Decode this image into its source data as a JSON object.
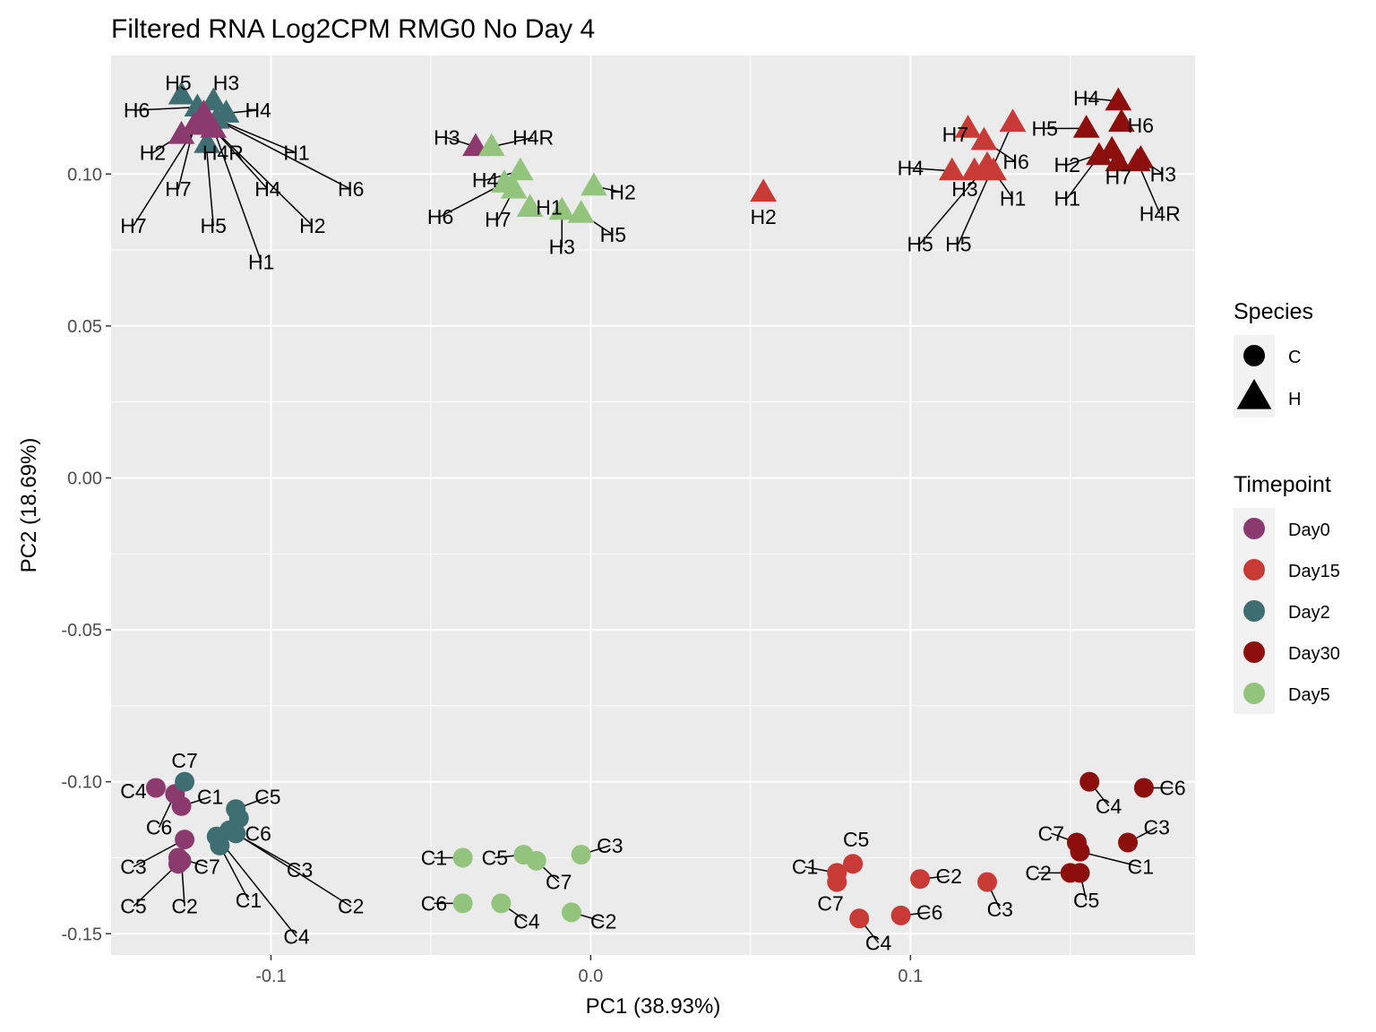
{
  "chart_data": {
    "type": "scatter",
    "title": "Filtered RNA Log2CPM RMG0 No Day 4",
    "xlabel": "PC1 (38.93%)",
    "ylabel": "PC2 (18.69%)",
    "xlim": [
      -0.15,
      0.189
    ],
    "ylim": [
      -0.157,
      0.139
    ],
    "xticks": [
      -0.1,
      0.0,
      0.1
    ],
    "xtick_labels": [
      "-0.1",
      "0.0",
      "0.1"
    ],
    "yticks": [
      -0.15,
      -0.1,
      -0.05,
      0.0,
      0.05,
      0.1
    ],
    "ytick_labels": [
      "-0.15",
      "-0.10",
      "-0.05",
      "0.00",
      "0.05",
      "0.10"
    ],
    "grid": true,
    "legends": [
      {
        "title": "Species",
        "entries": [
          {
            "label": "C",
            "shape": "circle"
          },
          {
            "label": "H",
            "shape": "triangle"
          }
        ]
      },
      {
        "title": "Timepoint",
        "entries": [
          {
            "label": "Day0",
            "color": "#8B3A6E"
          },
          {
            "label": "Day15",
            "color": "#C83A35"
          },
          {
            "label": "Day2",
            "color": "#3F6E72"
          },
          {
            "label": "Day30",
            "color": "#8B0F0C"
          },
          {
            "label": "Day5",
            "color": "#93C47D"
          }
        ]
      }
    ],
    "series": [
      {
        "name": "H",
        "timepoint": "Day2",
        "points": [
          {
            "label": "H5",
            "x": -0.128,
            "y": 0.126,
            "lx": -0.129,
            "ly": 0.13
          },
          {
            "label": "H3",
            "x": -0.118,
            "y": 0.124,
            "lx": -0.114,
            "ly": 0.13
          },
          {
            "label": "H4",
            "x": -0.114,
            "y": 0.12,
            "lx": -0.104,
            "ly": 0.121
          },
          {
            "label": "H4R",
            "x": -0.12,
            "y": 0.11,
            "lx": -0.115,
            "ly": 0.107
          },
          {
            "label": "H1",
            "x": -0.117,
            "y": 0.118,
            "lx": -0.092,
            "ly": 0.107
          },
          {
            "label": "H6",
            "x": -0.123,
            "y": 0.122,
            "lx": -0.142,
            "ly": 0.121
          }
        ]
      },
      {
        "name": "H",
        "timepoint": "Day0",
        "points": [
          {
            "label": "H2",
            "x": -0.128,
            "y": 0.113,
            "lx": -0.137,
            "ly": 0.107
          },
          {
            "label": "H7",
            "x": -0.124,
            "y": 0.116,
            "lx": -0.129,
            "ly": 0.095
          },
          {
            "label": "H7b",
            "text": "H7",
            "x": -0.122,
            "y": 0.118,
            "lx": -0.143,
            "ly": 0.083
          },
          {
            "label": "H5",
            "x": -0.121,
            "y": 0.119,
            "lx": -0.118,
            "ly": 0.083
          },
          {
            "label": "H4",
            "x": -0.119,
            "y": 0.116,
            "lx": -0.101,
            "ly": 0.095
          },
          {
            "label": "H2b",
            "text": "H2",
            "x": -0.12,
            "y": 0.117,
            "lx": -0.087,
            "ly": 0.083
          },
          {
            "label": "H1",
            "x": -0.118,
            "y": 0.115,
            "lx": -0.103,
            "ly": 0.071
          },
          {
            "label": "H6",
            "x": -0.121,
            "y": 0.12,
            "lx": -0.075,
            "ly": 0.095
          },
          {
            "label": "H3",
            "x": -0.036,
            "y": 0.109,
            "lx": -0.045,
            "ly": 0.112
          }
        ]
      },
      {
        "name": "H",
        "timepoint": "Day5",
        "points": [
          {
            "label": "H4R",
            "x": -0.031,
            "y": 0.109,
            "lx": -0.018,
            "ly": 0.112
          },
          {
            "label": "H4",
            "x": -0.022,
            "y": 0.101,
            "lx": -0.033,
            "ly": 0.098
          },
          {
            "label": "H6",
            "x": -0.027,
            "y": 0.097,
            "lx": -0.047,
            "ly": 0.086
          },
          {
            "label": "H7",
            "x": -0.024,
            "y": 0.095,
            "lx": -0.029,
            "ly": 0.085
          },
          {
            "label": "H1",
            "x": -0.019,
            "y": 0.089,
            "lx": -0.013,
            "ly": 0.089
          },
          {
            "label": "H2",
            "x": 0.001,
            "y": 0.096,
            "lx": 0.01,
            "ly": 0.094
          },
          {
            "label": "H3",
            "x": -0.009,
            "y": 0.088,
            "lx": -0.009,
            "ly": 0.076
          },
          {
            "label": "H5",
            "x": -0.003,
            "y": 0.087,
            "lx": 0.007,
            "ly": 0.08
          }
        ]
      },
      {
        "name": "H",
        "timepoint": "Day15",
        "points": [
          {
            "label": "H2",
            "x": 0.054,
            "y": 0.094,
            "lx": 0.054,
            "ly": 0.086
          },
          {
            "label": "H7",
            "x": 0.118,
            "y": 0.115,
            "lx": 0.114,
            "ly": 0.113
          },
          {
            "label": "H6",
            "x": 0.123,
            "y": 0.111,
            "lx": 0.133,
            "ly": 0.104
          },
          {
            "label": "H4",
            "x": 0.113,
            "y": 0.101,
            "lx": 0.1,
            "ly": 0.102
          },
          {
            "label": "H3",
            "x": 0.12,
            "y": 0.101,
            "lx": 0.117,
            "ly": 0.095
          },
          {
            "label": "H1",
            "x": 0.126,
            "y": 0.101,
            "lx": 0.132,
            "ly": 0.092
          },
          {
            "label": "H5",
            "x": 0.132,
            "y": 0.117,
            "lx": 0.115,
            "ly": 0.077
          },
          {
            "label": "H5b",
            "text": "H5",
            "x": 0.124,
            "y": 0.103,
            "lx": 0.103,
            "ly": 0.077
          }
        ]
      },
      {
        "name": "H",
        "timepoint": "Day30",
        "points": [
          {
            "label": "H4",
            "x": 0.165,
            "y": 0.124,
            "lx": 0.155,
            "ly": 0.125
          },
          {
            "label": "H6",
            "x": 0.166,
            "y": 0.117,
            "lx": 0.172,
            "ly": 0.116
          },
          {
            "label": "H5",
            "x": 0.155,
            "y": 0.115,
            "lx": 0.142,
            "ly": 0.115
          },
          {
            "label": "H2",
            "x": 0.163,
            "y": 0.108,
            "lx": 0.149,
            "ly": 0.103
          },
          {
            "label": "H1",
            "x": 0.159,
            "y": 0.106,
            "lx": 0.149,
            "ly": 0.092
          },
          {
            "label": "H7",
            "x": 0.165,
            "y": 0.104,
            "lx": 0.165,
            "ly": 0.099
          },
          {
            "label": "H3",
            "x": 0.172,
            "y": 0.105,
            "lx": 0.179,
            "ly": 0.1
          },
          {
            "label": "H4R",
            "x": 0.171,
            "y": 0.104,
            "lx": 0.178,
            "ly": 0.087
          }
        ]
      },
      {
        "name": "C",
        "timepoint": "Day0",
        "points": [
          {
            "label": "C4",
            "x": -0.136,
            "y": -0.102,
            "lx": -0.143,
            "ly": -0.103
          },
          {
            "label": "C6",
            "x": -0.13,
            "y": -0.104,
            "lx": -0.135,
            "ly": -0.115
          },
          {
            "label": "C1",
            "x": -0.128,
            "y": -0.108,
            "lx": -0.119,
            "ly": -0.105
          },
          {
            "label": "C3",
            "x": -0.127,
            "y": -0.119,
            "lx": -0.143,
            "ly": -0.128
          },
          {
            "label": "C7",
            "x": -0.129,
            "y": -0.125,
            "lx": -0.12,
            "ly": -0.128
          },
          {
            "label": "C5",
            "x": -0.129,
            "y": -0.127,
            "lx": -0.143,
            "ly": -0.141
          },
          {
            "label": "C2",
            "x": -0.128,
            "y": -0.126,
            "lx": -0.127,
            "ly": -0.141
          }
        ]
      },
      {
        "name": "C",
        "timepoint": "Day2",
        "points": [
          {
            "label": "C7",
            "x": -0.127,
            "y": -0.1,
            "lx": -0.127,
            "ly": -0.093
          },
          {
            "label": "C5",
            "x": -0.111,
            "y": -0.109,
            "lx": -0.101,
            "ly": -0.105
          },
          {
            "label": "C6",
            "x": -0.11,
            "y": -0.112,
            "lx": -0.104,
            "ly": -0.117
          },
          {
            "label": "C3",
            "x": -0.113,
            "y": -0.116,
            "lx": -0.091,
            "ly": -0.129
          },
          {
            "label": "C1",
            "x": -0.116,
            "y": -0.121,
            "lx": -0.107,
            "ly": -0.139
          },
          {
            "label": "C4",
            "x": -0.117,
            "y": -0.118,
            "lx": -0.092,
            "ly": -0.151
          },
          {
            "label": "C2",
            "x": -0.111,
            "y": -0.117,
            "lx": -0.075,
            "ly": -0.141
          }
        ]
      },
      {
        "name": "C",
        "timepoint": "Day5",
        "points": [
          {
            "label": "C1",
            "x": -0.04,
            "y": -0.125,
            "lx": -0.049,
            "ly": -0.125
          },
          {
            "label": "C5",
            "x": -0.021,
            "y": -0.124,
            "lx": -0.03,
            "ly": -0.125
          },
          {
            "label": "C7",
            "x": -0.017,
            "y": -0.126,
            "lx": -0.01,
            "ly": -0.133
          },
          {
            "label": "C3",
            "x": -0.003,
            "y": -0.124,
            "lx": 0.006,
            "ly": -0.121
          },
          {
            "label": "C6",
            "x": -0.04,
            "y": -0.14,
            "lx": -0.049,
            "ly": -0.14
          },
          {
            "label": "C4",
            "x": -0.028,
            "y": -0.14,
            "lx": -0.02,
            "ly": -0.146
          },
          {
            "label": "C2",
            "x": -0.006,
            "y": -0.143,
            "lx": 0.004,
            "ly": -0.146
          }
        ]
      },
      {
        "name": "C",
        "timepoint": "Day15",
        "points": [
          {
            "label": "C5",
            "x": 0.082,
            "y": -0.127,
            "lx": 0.083,
            "ly": -0.119
          },
          {
            "label": "C1",
            "x": 0.077,
            "y": -0.13,
            "lx": 0.067,
            "ly": -0.128
          },
          {
            "label": "C7",
            "x": 0.077,
            "y": -0.133,
            "lx": 0.075,
            "ly": -0.14
          },
          {
            "label": "C2",
            "x": 0.103,
            "y": -0.132,
            "lx": 0.112,
            "ly": -0.131
          },
          {
            "label": "C3",
            "x": 0.124,
            "y": -0.133,
            "lx": 0.128,
            "ly": -0.142
          },
          {
            "label": "C4",
            "x": 0.084,
            "y": -0.145,
            "lx": 0.09,
            "ly": -0.153
          },
          {
            "label": "C6",
            "x": 0.097,
            "y": -0.144,
            "lx": 0.106,
            "ly": -0.143
          }
        ]
      },
      {
        "name": "C",
        "timepoint": "Day30",
        "points": [
          {
            "label": "C4",
            "x": 0.156,
            "y": -0.1,
            "lx": 0.162,
            "ly": -0.108
          },
          {
            "label": "C6",
            "x": 0.173,
            "y": -0.102,
            "lx": 0.182,
            "ly": -0.102
          },
          {
            "label": "C7",
            "x": 0.152,
            "y": -0.12,
            "lx": 0.144,
            "ly": -0.117
          },
          {
            "label": "C3",
            "x": 0.168,
            "y": -0.12,
            "lx": 0.177,
            "ly": -0.115
          },
          {
            "label": "C1",
            "x": 0.153,
            "y": -0.123,
            "lx": 0.172,
            "ly": -0.128
          },
          {
            "label": "C2",
            "x": 0.15,
            "y": -0.13,
            "lx": 0.14,
            "ly": -0.13
          },
          {
            "label": "C5",
            "x": 0.153,
            "y": -0.13,
            "lx": 0.155,
            "ly": -0.139
          }
        ]
      }
    ]
  }
}
